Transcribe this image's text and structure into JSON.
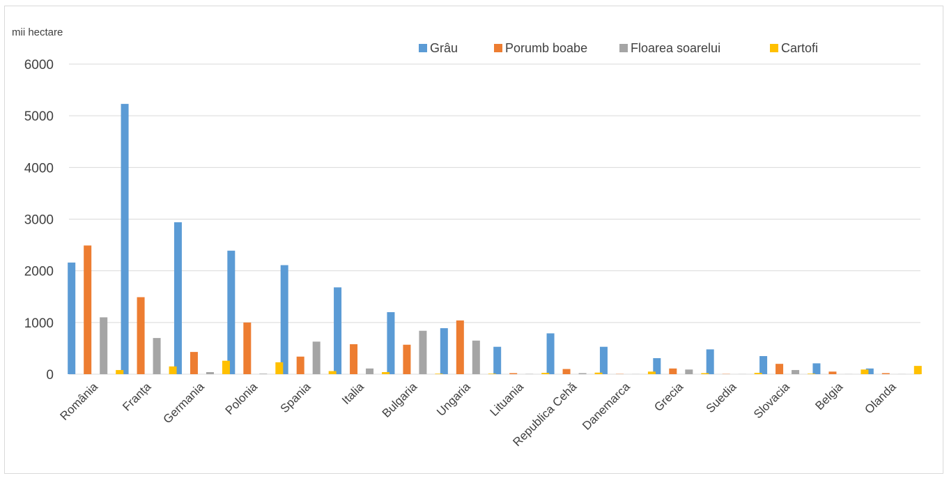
{
  "chart_data": {
    "type": "bar",
    "unit_label": "mii hectare",
    "categories": [
      "România",
      "Franța",
      "Germania",
      "Polonia",
      "Spania",
      "Italia",
      "Bulgaria",
      "Ungaria",
      "Lituania",
      "Republica Cehă",
      "Danemarca",
      "Grecia",
      "Suedia",
      "Slovacia",
      "Belgia",
      "Olanda"
    ],
    "series": [
      {
        "name": "Grâu",
        "color": "#5b9bd5",
        "values": [
          2160,
          5230,
          2940,
          2390,
          2110,
          1680,
          1200,
          890,
          530,
          790,
          530,
          310,
          480,
          350,
          210,
          110
        ]
      },
      {
        "name": "Porumb boabe",
        "color": "#ed7d31",
        "values": [
          2490,
          1490,
          430,
          1000,
          340,
          580,
          570,
          1040,
          20,
          100,
          5,
          110,
          5,
          200,
          50,
          20
        ]
      },
      {
        "name": "Floarea soarelui",
        "color": "#a5a5a5",
        "values": [
          1100,
          700,
          40,
          10,
          630,
          110,
          840,
          650,
          5,
          20,
          2,
          90,
          2,
          80,
          2,
          2
        ]
      },
      {
        "name": "Cartofi",
        "color": "#ffc000",
        "values": [
          80,
          150,
          260,
          230,
          60,
          40,
          10,
          10,
          25,
          30,
          50,
          20,
          25,
          10,
          90,
          160
        ]
      }
    ],
    "ylim": [
      0,
      6000
    ],
    "yticks": [
      0,
      1000,
      2000,
      3000,
      4000,
      5000,
      6000
    ],
    "grid": true,
    "legend_position": "top-right"
  }
}
